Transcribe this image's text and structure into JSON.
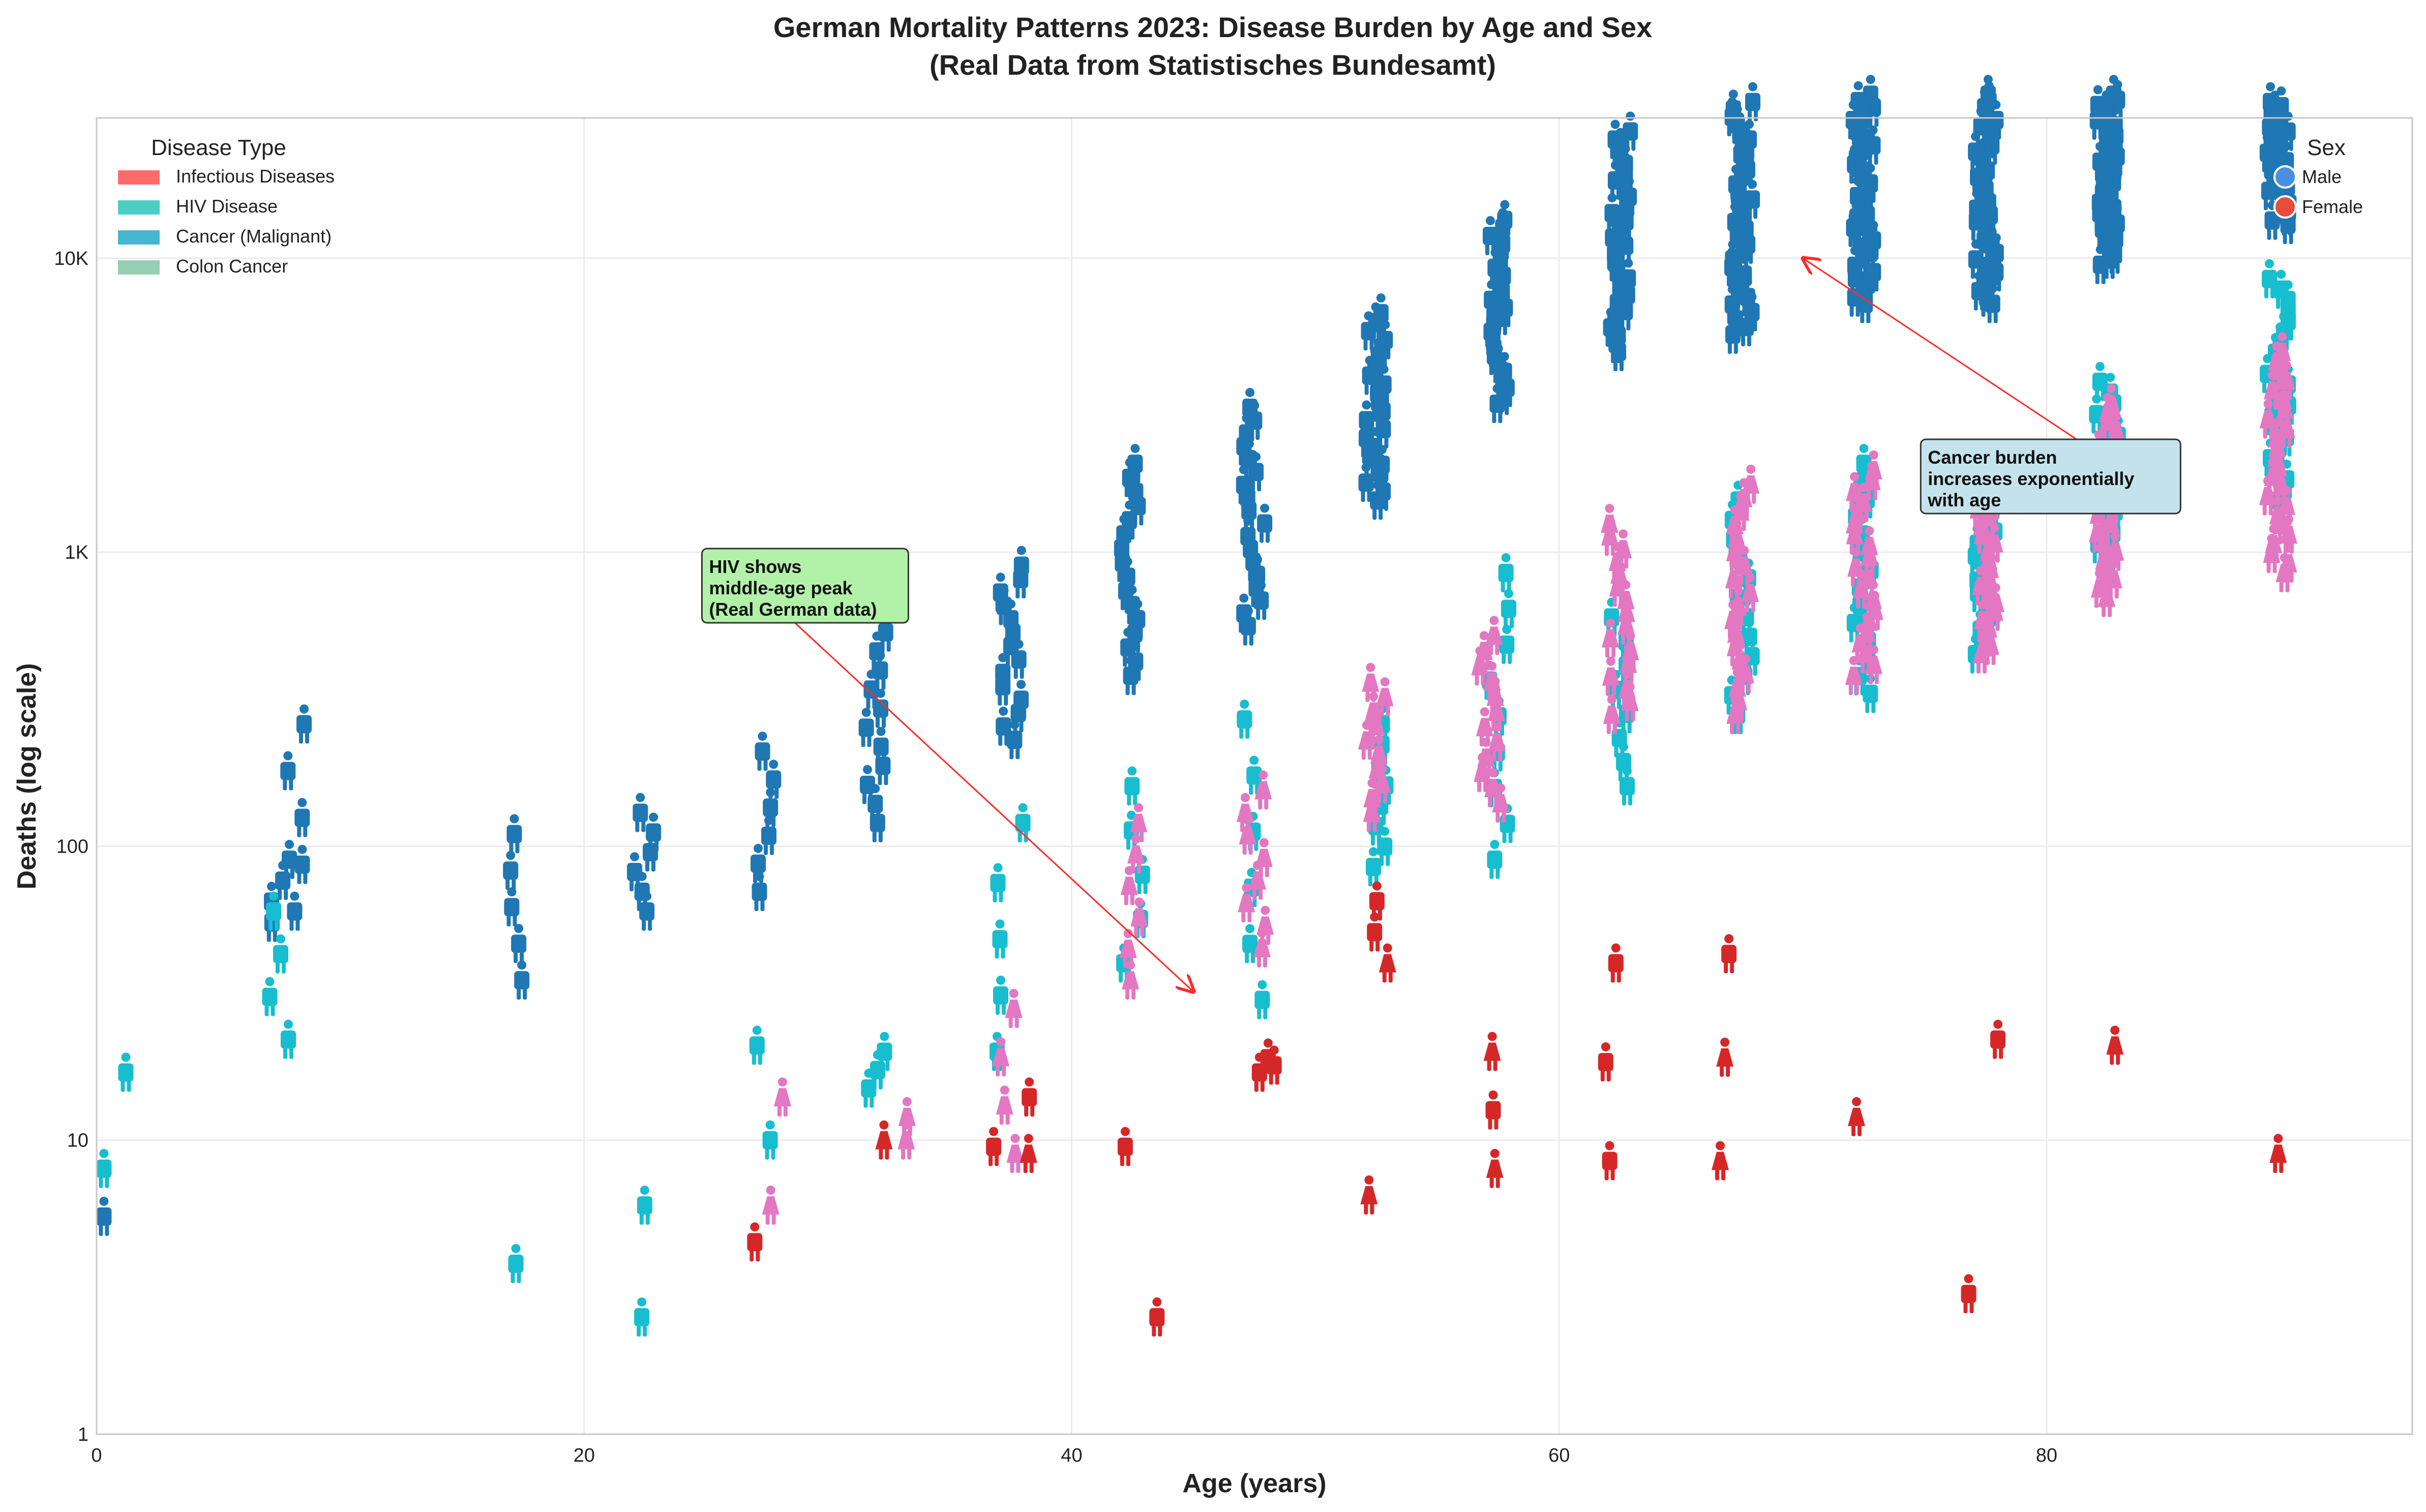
{
  "chart_data": {
    "type": "scatter",
    "title_line1": "German Mortality Patterns 2023: Disease Burden by Age and Sex",
    "title_line2": "(Real Data from Statistisches Bundesamt)",
    "xlabel": "Age (years)",
    "ylabel": "Deaths (log scale)",
    "xlim": [
      0,
      95
    ],
    "ylim": [
      1,
      30000
    ],
    "y_scale": "log",
    "grid": true,
    "marker": "person pictogram",
    "x_ticks": [
      {
        "value": 0,
        "label": "0"
      },
      {
        "value": 20,
        "label": "20"
      },
      {
        "value": 40,
        "label": "40"
      },
      {
        "value": 60,
        "label": "60"
      },
      {
        "value": 80,
        "label": "80"
      }
    ],
    "y_ticks": [
      {
        "value": 1,
        "label": "1"
      },
      {
        "value": 10,
        "label": "10"
      },
      {
        "value": 100,
        "label": "100"
      },
      {
        "value": 1000,
        "label": "1K"
      },
      {
        "value": 10000,
        "label": "10K"
      }
    ],
    "legend_disease": {
      "title": "Disease Type",
      "placement": "top-left",
      "entries": [
        {
          "label": "Infectious Diseases",
          "color": "#FF6B6B"
        },
        {
          "label": "HIV Disease",
          "color": "#4ECDC4"
        },
        {
          "label": "Cancer (Malignant)",
          "color": "#45B7D1"
        },
        {
          "label": "Colon Cancer",
          "color": "#96CEB4"
        }
      ]
    },
    "legend_sex": {
      "title": "Sex",
      "placement": "top-right",
      "entries": [
        {
          "label": "Male",
          "color": "#4A90E2"
        },
        {
          "label": "Female",
          "color": "#E74C3C"
        }
      ]
    },
    "annotations": [
      {
        "text": [
          "HIV shows",
          "middle-age peak",
          "(Real German data)"
        ],
        "box_color": "#b2f2a8",
        "text_x": 25,
        "text_y": 850,
        "arrow_to_x": 45,
        "arrow_to_y": 32
      },
      {
        "text": [
          "Cancer burden",
          "increases exponentially",
          "with age"
        ],
        "box_color": "#c3e2ec",
        "text_x": 75,
        "text_y": 2000,
        "arrow_to_x": 70,
        "arrow_to_y": 10000
      }
    ],
    "series": [
      {
        "name": "Cancer (Malignant)",
        "sex": "Male",
        "color": "#1f77b4",
        "clusters": [
          [
            0.3,
            5.5,
            5.5,
            1
          ],
          [
            7.5,
            55,
            90,
            4
          ],
          [
            8.2,
            60,
            260,
            5
          ],
          [
            17.2,
            35,
            110,
            5
          ],
          [
            22.5,
            60,
            130,
            6
          ],
          [
            27.5,
            70,
            210,
            6
          ],
          [
            32,
            120,
            620,
            12
          ],
          [
            37.5,
            230,
            900,
            14
          ],
          [
            42.5,
            380,
            2000,
            16
          ],
          [
            47.5,
            560,
            3100,
            18
          ],
          [
            52.5,
            1500,
            6500,
            22
          ],
          [
            57.5,
            3200,
            13500,
            24
          ],
          [
            62.5,
            4800,
            27000,
            28
          ],
          [
            67.5,
            5500,
            34000,
            32
          ],
          [
            72.5,
            7000,
            36000,
            34
          ],
          [
            77.5,
            7000,
            36000,
            34
          ],
          [
            82.5,
            9500,
            36000,
            34
          ],
          [
            89.5,
            13000,
            34000,
            30
          ]
        ]
      },
      {
        "name": "HIV Disease",
        "sex": "Male",
        "color": "#17becf",
        "clusters": [
          [
            0.3,
            8,
            8,
            1
          ],
          [
            1.2,
            17,
            17,
            1
          ],
          [
            7.5,
            22,
            60,
            4
          ],
          [
            17.2,
            3.8,
            3.8,
            1
          ],
          [
            22.5,
            2.5,
            6,
            2
          ],
          [
            27.5,
            10,
            21,
            2
          ],
          [
            32,
            15,
            20,
            3
          ],
          [
            37.2,
            20,
            75,
            4
          ],
          [
            38,
            120,
            120,
            1
          ],
          [
            42.5,
            40,
            160,
            5
          ],
          [
            47.5,
            30,
            270,
            6
          ],
          [
            52.5,
            85,
            260,
            8
          ],
          [
            57.5,
            90,
            850,
            9
          ],
          [
            62.5,
            160,
            600,
            8
          ],
          [
            67.5,
            280,
            1500,
            12
          ],
          [
            72.5,
            330,
            2000,
            14
          ],
          [
            77.5,
            450,
            1900,
            16
          ],
          [
            82.5,
            900,
            3800,
            18
          ],
          [
            89.5,
            1500,
            8500,
            22
          ]
        ]
      },
      {
        "name": "Cancer (Malignant)",
        "sex": "Female",
        "color": "#e377c2",
        "clusters": [
          [
            28,
            6,
            14,
            2
          ],
          [
            33,
            10,
            12,
            2
          ],
          [
            37.5,
            9,
            28,
            4
          ],
          [
            42.5,
            35,
            120,
            6
          ],
          [
            47.5,
            45,
            155,
            8
          ],
          [
            52.5,
            130,
            360,
            10
          ],
          [
            57.2,
            140,
            520,
            12
          ],
          [
            62.5,
            280,
            1250,
            16
          ],
          [
            67.5,
            280,
            1700,
            18
          ],
          [
            72.5,
            380,
            1900,
            20
          ],
          [
            77.5,
            450,
            1600,
            20
          ],
          [
            82.5,
            700,
            3200,
            22
          ],
          [
            89.5,
            850,
            4800,
            24
          ]
        ]
      },
      {
        "name": "Infectious Diseases",
        "sex": "Mixed",
        "color": "#d62728",
        "clusters": [
          [
            27,
            4.5,
            4.5,
            1
          ],
          [
            32.3,
            10,
            10,
            1
          ],
          [
            36.8,
            9.5,
            9.5,
            1
          ],
          [
            38.3,
            9,
            14,
            2
          ],
          [
            42.2,
            9.5,
            9.5,
            1
          ],
          [
            43.5,
            2.5,
            2.5,
            1
          ],
          [
            48,
            17,
            19,
            3
          ],
          [
            52.2,
            6.5,
            6.5,
            1
          ],
          [
            52.8,
            40,
            65,
            3
          ],
          [
            57.3,
            8,
            20,
            3
          ],
          [
            62.2,
            8.5,
            40,
            3
          ],
          [
            67,
            8.5,
            43,
            3
          ],
          [
            72.2,
            12,
            12,
            1
          ],
          [
            76.8,
            3,
            3,
            1
          ],
          [
            78,
            22,
            22,
            1
          ],
          [
            82.8,
            21,
            21,
            1
          ],
          [
            89.5,
            9,
            9,
            1
          ]
        ]
      }
    ]
  }
}
